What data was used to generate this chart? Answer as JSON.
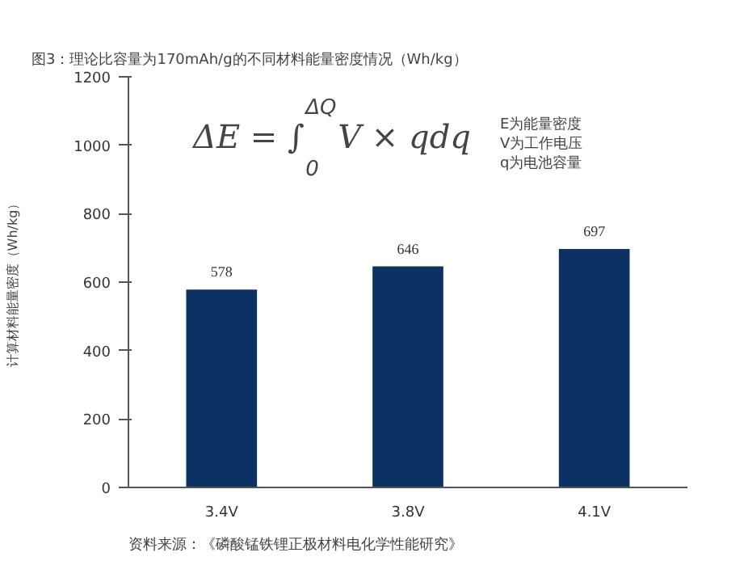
{
  "chart_data": {
    "type": "bar",
    "title": "图3：理论比容量为170mAh/g的不同材料能量密度情况（Wh/kg）",
    "ylabel": "计算材料能量密度（Wh/kg）",
    "categories": [
      "3.4V",
      "3.8V",
      "4.1V"
    ],
    "values": [
      578,
      646,
      697
    ],
    "color": "#0b3263",
    "ylim": [
      0,
      1200
    ],
    "yticks": [
      0,
      200,
      400,
      600,
      800,
      1000,
      1200
    ],
    "grid": false,
    "data_labels": true,
    "annotations": [
      "ΔE = ∫$_{0}$$^{ΔQ}$V × qdq",
      "E为能量密度\nV为工作电压\nq为电池容量",
      "资料来源：《磷酸锰铁锂正极材料电化学性能研究》"
    ]
  }
}
